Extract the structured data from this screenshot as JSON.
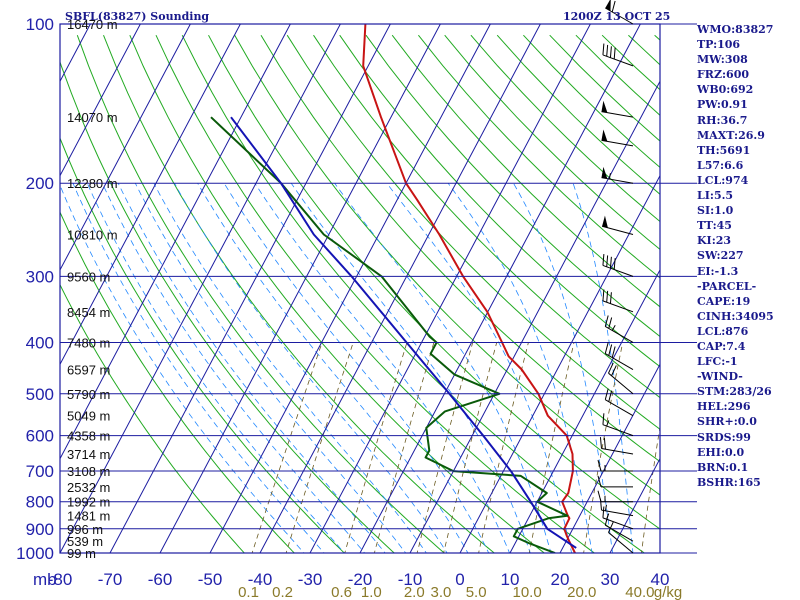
{
  "title_left": "SBFL(83827) Sounding",
  "title_right": "1200Z 13 OCT 25",
  "colors": {
    "frame": "#1c1ca0",
    "temperature": "#c81414",
    "dewpoint": "#0a5a0a",
    "parcel": "#1414b4",
    "dry_adiabat": "#22aa22",
    "moist_adiabat": "#2288ff",
    "mixing_ratio": "#6a5a20",
    "wind_barb": "#000000"
  },
  "chart_data": {
    "type": "skew-t",
    "xlabel": "",
    "ylabel": "",
    "x_axis_unit": "mb",
    "x_ticks": [
      "-80",
      "-70",
      "-60",
      "-50",
      "-40",
      "-30",
      "-20",
      "-10",
      "0",
      "10",
      "20",
      "30",
      "40"
    ],
    "y_axis_log": true,
    "ylim": [
      1000,
      100
    ],
    "pressure_ticks": [
      "100",
      "200",
      "300",
      "400",
      "500",
      "600",
      "700",
      "800",
      "900",
      "1000"
    ],
    "mixing_ratio_labels": [
      "0.1",
      "0.2",
      "0.6",
      "1.0",
      "2.0",
      "3.0",
      "5.0",
      "10.0",
      "20.0",
      "40.0",
      "g/kg"
    ],
    "height_labels": [
      {
        "p": 100,
        "h": "16470 m"
      },
      {
        "p": 150,
        "h": "14070 m"
      },
      {
        "p": 200,
        "h": "12280 m"
      },
      {
        "p": 250,
        "h": "10810 m"
      },
      {
        "p": 300,
        "h": "9560 m"
      },
      {
        "p": 350,
        "h": "8454 m"
      },
      {
        "p": 400,
        "h": "7480 m"
      },
      {
        "p": 450,
        "h": "6597 m"
      },
      {
        "p": 500,
        "h": "5790 m"
      },
      {
        "p": 550,
        "h": "5049 m"
      },
      {
        "p": 600,
        "h": "4358 m"
      },
      {
        "p": 650,
        "h": "3714 m"
      },
      {
        "p": 700,
        "h": "3108 m"
      },
      {
        "p": 750,
        "h": "2532 m"
      },
      {
        "p": 800,
        "h": "1992 m"
      },
      {
        "p": 850,
        "h": "1481 m"
      },
      {
        "p": 900,
        "h": "996 m"
      },
      {
        "p": 950,
        "h": "539 m"
      },
      {
        "p": 1000,
        "h": "99 m"
      }
    ],
    "series": [
      {
        "key": "temperature",
        "points": [
          [
            1000,
            23.0
          ],
          [
            950,
            20.6
          ],
          [
            925,
            19.4
          ],
          [
            900,
            18.3
          ],
          [
            860,
            18.2
          ],
          [
            850,
            17.6
          ],
          [
            800,
            15.0
          ],
          [
            770,
            15.3
          ],
          [
            700,
            13.9
          ],
          [
            650,
            12.0
          ],
          [
            600,
            8.9
          ],
          [
            550,
            3.0
          ],
          [
            500,
            -1.2
          ],
          [
            450,
            -7.1
          ],
          [
            425,
            -11.1
          ],
          [
            400,
            -13.9
          ],
          [
            350,
            -20.1
          ],
          [
            300,
            -28.7
          ],
          [
            250,
            -37.9
          ],
          [
            215,
            -46.0
          ],
          [
            200,
            -50.0
          ],
          [
            150,
            -62.0
          ],
          [
            120,
            -71.0
          ],
          [
            100,
            -75.0
          ]
        ]
      },
      {
        "key": "dewpoint",
        "points": [
          [
            1000,
            19.0
          ],
          [
            960,
            13.0
          ],
          [
            930,
            9.0
          ],
          [
            900,
            9.0
          ],
          [
            860,
            14.0
          ],
          [
            850,
            17.5
          ],
          [
            800,
            10.0
          ],
          [
            770,
            11.0
          ],
          [
            715,
            4.0
          ],
          [
            700,
            -10.0
          ],
          [
            660,
            -17.0
          ],
          [
            640,
            -17.0
          ],
          [
            580,
            -20.0
          ],
          [
            540,
            -18.0
          ],
          [
            500,
            -9.0
          ],
          [
            460,
            -20.0
          ],
          [
            420,
            -27.0
          ],
          [
            400,
            -27.0
          ],
          [
            390,
            -29.0
          ],
          [
            300,
            -45.0
          ],
          [
            250,
            -61.0
          ],
          [
            200,
            -75.0
          ],
          [
            150,
            -96.0
          ]
        ]
      },
      {
        "key": "parcel",
        "points": [
          [
            978,
            22.7
          ],
          [
            900,
            14.9
          ],
          [
            850,
            11.9
          ],
          [
            800,
            8.7
          ],
          [
            700,
            1.5
          ],
          [
            600,
            -7.8
          ],
          [
            500,
            -19.0
          ],
          [
            400,
            -33.0
          ],
          [
            300,
            -51.0
          ],
          [
            250,
            -63.0
          ],
          [
            200,
            -75.0
          ],
          [
            150,
            -92.0
          ]
        ]
      }
    ],
    "wind_barbs": [
      {
        "p": 100,
        "dir": 300,
        "spd": 60
      },
      {
        "p": 120,
        "dir": 290,
        "spd": 40
      },
      {
        "p": 150,
        "dir": 280,
        "spd": 50
      },
      {
        "p": 170,
        "dir": 280,
        "spd": 50
      },
      {
        "p": 200,
        "dir": 280,
        "spd": 55
      },
      {
        "p": 250,
        "dir": 285,
        "spd": 50
      },
      {
        "p": 300,
        "dir": 290,
        "spd": 40
      },
      {
        "p": 350,
        "dir": 290,
        "spd": 30
      },
      {
        "p": 400,
        "dir": 300,
        "spd": 25
      },
      {
        "p": 450,
        "dir": 300,
        "spd": 30
      },
      {
        "p": 500,
        "dir": 310,
        "spd": 20
      },
      {
        "p": 550,
        "dir": 300,
        "spd": 20
      },
      {
        "p": 600,
        "dir": 290,
        "spd": 15
      },
      {
        "p": 650,
        "dir": 280,
        "spd": 20
      },
      {
        "p": 700,
        "dir": 270,
        "spd": 15
      },
      {
        "p": 750,
        "dir": 270,
        "spd": 10
      },
      {
        "p": 800,
        "dir": 270,
        "spd": 15
      },
      {
        "p": 850,
        "dir": 280,
        "spd": 15
      },
      {
        "p": 900,
        "dir": 290,
        "spd": 15
      },
      {
        "p": 950,
        "dir": 300,
        "spd": 10
      },
      {
        "p": 1000,
        "dir": 310,
        "spd": 10
      }
    ]
  },
  "indices": [
    "WMO:83827",
    "TP:106",
    "MW:308",
    "FRZ:600",
    "WB0:692",
    "PW:0.91",
    "RH:36.7",
    "MAXT:26.9",
    "TH:5691",
    "L57:6.6",
    "LCL:974",
    "LI:5.5",
    "SI:1.0",
    "TT:45",
    "KI:23",
    "SW:227",
    "EI:-1.3",
    "-PARCEL-",
    "CAPE:19",
    "CINH:34095",
    "LCL:876",
    "CAP:7.4",
    "LFC:-1",
    "-WIND-",
    "STM:283/26",
    "HEL:296",
    "SHR+:0.0",
    "SRDS:99",
    "EHI:0.0",
    "BRN:0.1",
    "BSHR:165"
  ]
}
